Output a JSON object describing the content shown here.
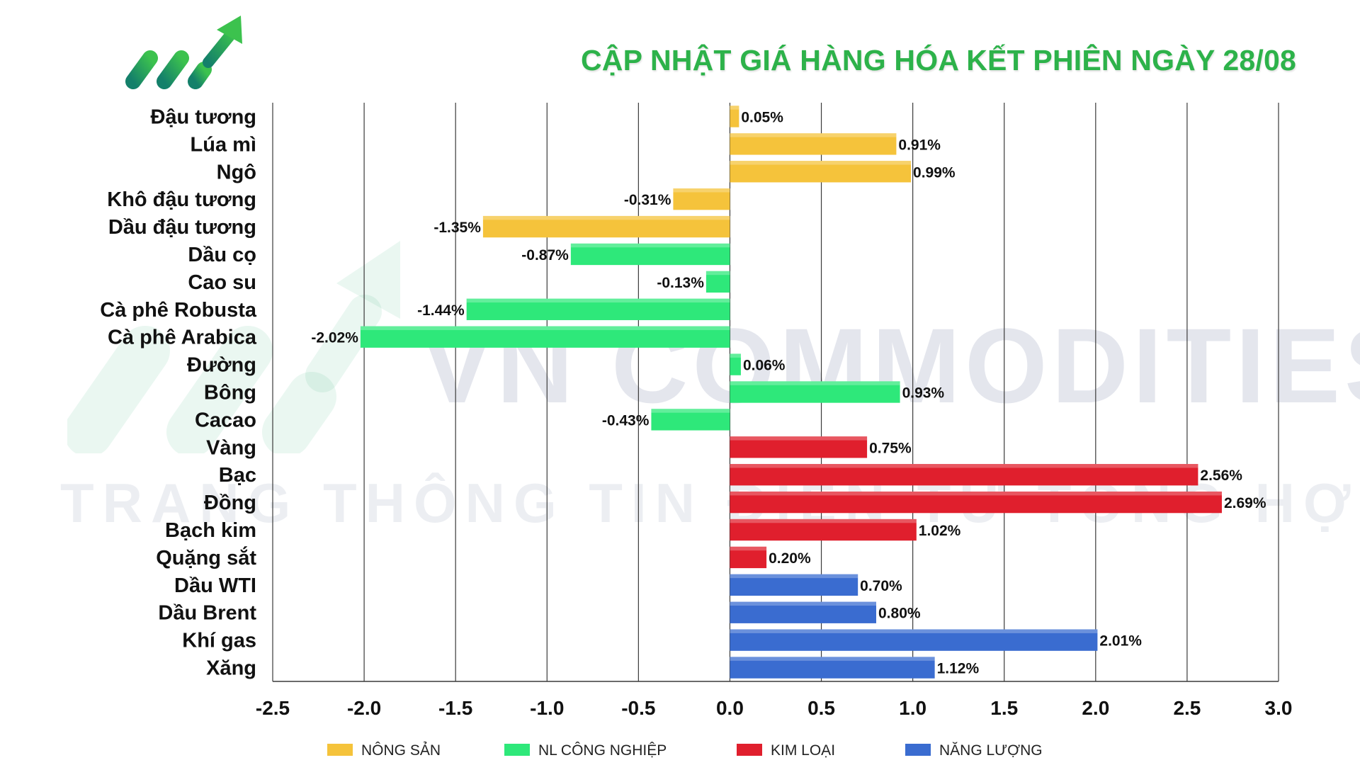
{
  "header": {
    "title": "CẬP NHẬT GIÁ HÀNG HÓA KẾT PHIÊN NGÀY 28/08"
  },
  "watermark": {
    "main": "VN COMMODITIES",
    "sub": "TRANG THÔNG TIN ĐIỆN TỬ TỔNG HỢP"
  },
  "colors": {
    "title": "#2db24a",
    "nong_san": "#f5c33b",
    "nl_cong_nghiep": "#2ee87a",
    "kim_loai": "#e01f2d",
    "nang_luong": "#3a6cd0"
  },
  "chart_data": {
    "type": "bar",
    "orientation": "horizontal",
    "categories": [
      "Đậu tương",
      "Lúa mì",
      "Ngô",
      "Khô đậu tương",
      "Dầu đậu tương",
      "Dầu cọ",
      "Cao su",
      "Cà phê Robusta",
      "Cà phê Arabica",
      "Đường",
      "Bông",
      "Cacao",
      "Vàng",
      "Bạc",
      "Đồng",
      "Bạch kim",
      "Quặng sắt",
      "Dầu WTI",
      "Dầu Brent",
      "Khí gas",
      "Xăng"
    ],
    "values": [
      0.05,
      0.91,
      0.99,
      -0.31,
      -1.35,
      -0.87,
      -0.13,
      -1.44,
      -2.02,
      0.06,
      0.93,
      -0.43,
      0.75,
      2.56,
      2.69,
      1.02,
      0.2,
      0.7,
      0.8,
      2.01,
      1.12
    ],
    "labels": [
      "0.05%",
      "0.91%",
      "0.99%",
      "-0.31%",
      "-1.35%",
      "-0.87%",
      "-0.13%",
      "-1.44%",
      "-2.02%",
      "0.06%",
      "0.93%",
      "-0.43%",
      "0.75%",
      "2.56%",
      "2.69%",
      "1.02%",
      "0.20%",
      "0.70%",
      "0.80%",
      "2.01%",
      "1.12%"
    ],
    "groups": [
      0,
      0,
      0,
      0,
      0,
      1,
      1,
      1,
      1,
      1,
      1,
      1,
      2,
      2,
      2,
      2,
      2,
      3,
      3,
      3,
      3
    ],
    "series": [
      {
        "name": "NÔNG SẢN",
        "color": "#f5c33b"
      },
      {
        "name": "NL CÔNG NGHIỆP",
        "color": "#2ee87a"
      },
      {
        "name": "KIM LOẠI",
        "color": "#e01f2d"
      },
      {
        "name": "NĂNG LƯỢNG",
        "color": "#3a6cd0"
      }
    ],
    "xlim": [
      -2.5,
      3.0
    ],
    "xticks": [
      -2.5,
      -2.0,
      -1.5,
      -1.0,
      -0.5,
      0.0,
      0.5,
      1.0,
      1.5,
      2.0,
      2.5,
      3.0
    ],
    "xtick_labels": [
      "-2.5",
      "-2.0",
      "-1.5",
      "-1.0",
      "-0.5",
      "0.0",
      "0.5",
      "1.0",
      "1.5",
      "2.0",
      "2.5",
      "3.0"
    ],
    "grid": "vertical",
    "legend": "bottom"
  }
}
